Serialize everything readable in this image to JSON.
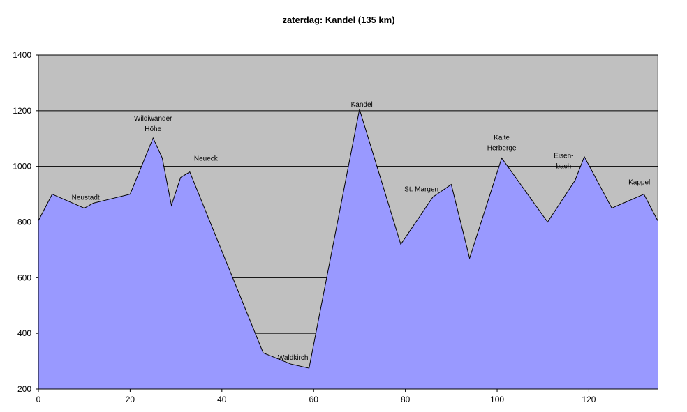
{
  "chart_data": {
    "type": "area",
    "title": "zaterdag: Kandel (135 km)",
    "xlabel": "",
    "ylabel": "",
    "xlim": [
      0,
      135
    ],
    "ylim": [
      200,
      1400
    ],
    "x_ticks": [
      0,
      20,
      40,
      60,
      80,
      100,
      120
    ],
    "y_ticks": [
      200,
      400,
      600,
      800,
      1000,
      1200,
      1400
    ],
    "grid": "horizontal",
    "legend": "none",
    "colors": {
      "plot_background": "#c0c0c0",
      "fill": "#9999ff",
      "line": "#000000"
    },
    "series": [
      {
        "x": [
          0,
          3,
          10,
          12,
          15,
          20,
          25,
          27,
          29,
          31,
          33,
          49,
          55,
          59,
          70,
          79,
          86,
          90,
          94,
          101,
          111,
          117,
          119,
          125,
          132,
          135
        ],
        "y": [
          805,
          900,
          850,
          868,
          880,
          900,
          1102,
          1030,
          860,
          960,
          980,
          330,
          290,
          275,
          1205,
          720,
          890,
          935,
          670,
          1030,
          800,
          950,
          1035,
          850,
          900,
          805
        ]
      }
    ],
    "annotations": [
      {
        "lines": [
          "Neustadt"
        ],
        "x": 10.3,
        "y": 880
      },
      {
        "lines": [
          "Wildiwander",
          "Höhe"
        ],
        "x": 25,
        "y": 1165
      },
      {
        "lines": [
          "Neueck"
        ],
        "x": 36.5,
        "y": 1020
      },
      {
        "lines": [
          "Waldkirch"
        ],
        "x": 55.5,
        "y": 305
      },
      {
        "lines": [
          "Kandel"
        ],
        "x": 70.5,
        "y": 1215
      },
      {
        "lines": [
          "St. Margen"
        ],
        "x": 83.5,
        "y": 910
      },
      {
        "lines": [
          "Kalte",
          "Herberge"
        ],
        "x": 101,
        "y": 1095
      },
      {
        "lines": [
          "Eisen-",
          "bach"
        ],
        "x": 114.5,
        "y": 1030
      },
      {
        "lines": [
          "Kappel"
        ],
        "x": 131,
        "y": 935
      }
    ]
  }
}
